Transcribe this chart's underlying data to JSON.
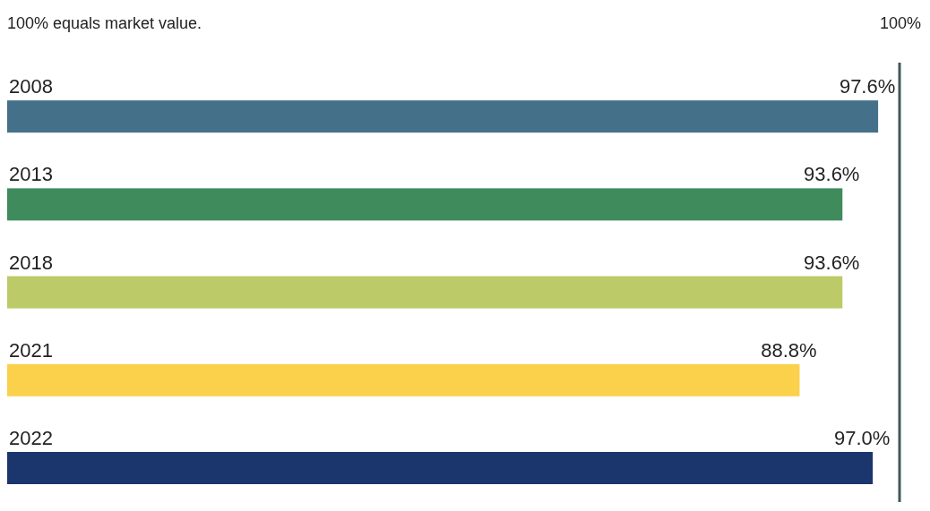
{
  "chart_data": {
    "type": "bar",
    "orientation": "horizontal",
    "subtitle": "100% equals market value.",
    "categories": [
      "2008",
      "2013",
      "2018",
      "2021",
      "2022"
    ],
    "values": [
      97.6,
      93.6,
      93.6,
      88.8,
      97.0
    ],
    "value_labels": [
      "97.6%",
      "93.6%",
      "93.6%",
      "88.8%",
      "97.0%"
    ],
    "colors": [
      "#457089",
      "#3f8b5c",
      "#bccb67",
      "#fbd04b",
      "#1b366d"
    ],
    "ref_lines": [
      {
        "axis": "x",
        "value": 100,
        "label": "100%",
        "color": "#3f5a55"
      }
    ]
  }
}
